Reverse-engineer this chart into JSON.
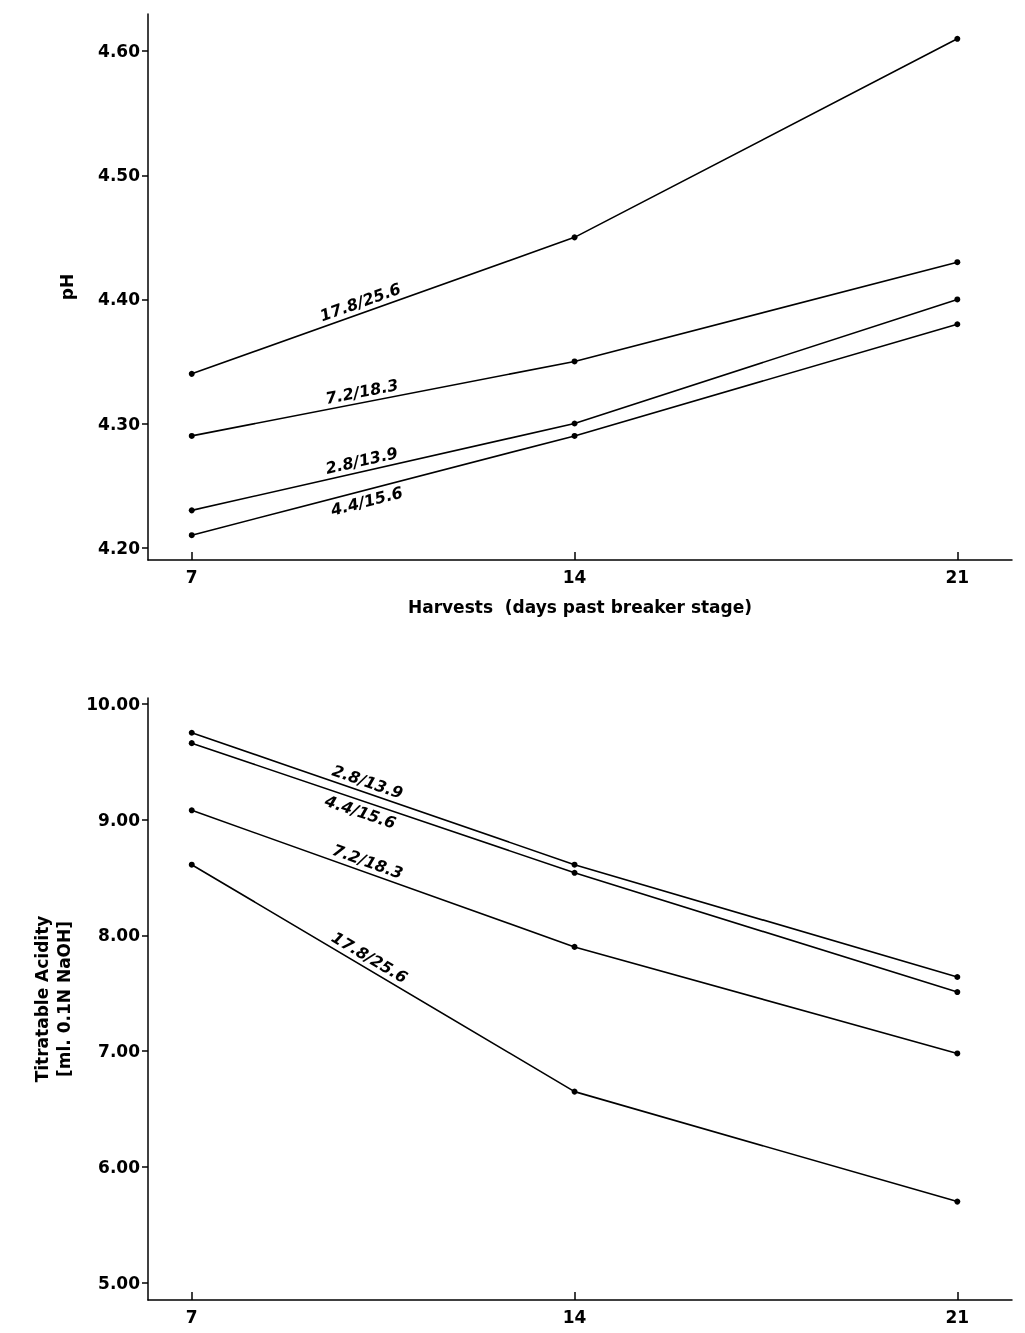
{
  "chart_data": [
    {
      "type": "line",
      "xlabel": "Harvests  (days past breaker stage)",
      "ylabel": "pH",
      "x": [
        7,
        14,
        21
      ],
      "xlim": [
        6.2,
        22
      ],
      "xticks": [
        7,
        14,
        21
      ],
      "ylim": [
        4.19,
        4.63
      ],
      "yticks": [
        {
          "value": 4.2,
          "label": "4.20"
        },
        {
          "value": 4.3,
          "label": "4.30"
        },
        {
          "value": 4.4,
          "label": "4.40"
        },
        {
          "value": 4.5,
          "label": "4.50"
        },
        {
          "value": 4.6,
          "label": "4.60"
        }
      ],
      "grid": false,
      "legend": false,
      "marker": "circle",
      "line_style": "solid",
      "series": [
        {
          "name": "17.8/25.6",
          "color": "#000000",
          "values": [
            4.34,
            4.45,
            4.61
          ]
        },
        {
          "name": "7.2/18.3",
          "color": "#000000",
          "values": [
            4.29,
            4.35,
            4.43
          ]
        },
        {
          "name": "2.8/13.9",
          "color": "#000000",
          "values": [
            4.23,
            4.3,
            4.4
          ]
        },
        {
          "name": "4.4/15.6",
          "color": "#000000",
          "values": [
            4.21,
            4.29,
            4.38
          ]
        }
      ]
    },
    {
      "type": "line",
      "ylabel": "Titratable Acidity\n[ml. 0.1N NaOH]",
      "x": [
        7,
        14,
        21
      ],
      "xlim": [
        6.2,
        22
      ],
      "xticks": [
        7,
        14,
        21
      ],
      "ylim": [
        4.85,
        10.05
      ],
      "yticks": [
        {
          "value": 5,
          "label": "5.00"
        },
        {
          "value": 6,
          "label": "6.00"
        },
        {
          "value": 7,
          "label": "7.00"
        },
        {
          "value": 8,
          "label": "8.00"
        },
        {
          "value": 9,
          "label": "9.00"
        },
        {
          "value": 10,
          "label": "10.00"
        }
      ],
      "grid": false,
      "legend": false,
      "marker": "circle",
      "line_style": "solid",
      "series": [
        {
          "name": "2.8/13.9",
          "color": "#000000",
          "values": [
            9.75,
            8.61,
            7.64
          ]
        },
        {
          "name": "4.4/15.6",
          "color": "#000000",
          "values": [
            9.66,
            8.54,
            7.51
          ]
        },
        {
          "name": "7.2/18.3",
          "color": "#000000",
          "values": [
            9.08,
            7.9,
            6.98
          ]
        },
        {
          "name": "17.8/25.6",
          "color": "#000000",
          "values": [
            8.61,
            6.65,
            5.7
          ]
        }
      ]
    }
  ]
}
